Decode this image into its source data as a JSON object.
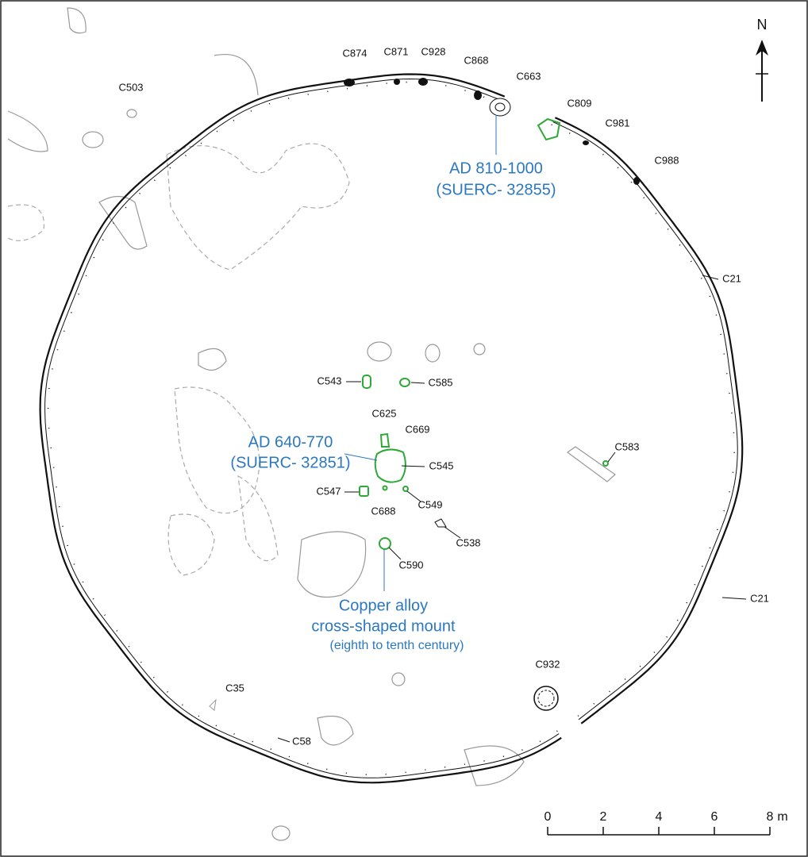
{
  "features": [
    "C874",
    "C871",
    "C928",
    "C868",
    "C663",
    "C503",
    "C809",
    "C981",
    "C988",
    "C21",
    "C21",
    "C543",
    "C585",
    "C625",
    "C669",
    "C545",
    "C547",
    "C688",
    "C549",
    "C538",
    "C590",
    "C583",
    "C932",
    "C35",
    "C58"
  ],
  "annotations": [
    {
      "lines": [
        "AD 810-1000",
        "(SUERC- 32855)"
      ]
    },
    {
      "lines": [
        "AD 640-770",
        "(SUERC- 32851)"
      ]
    },
    {
      "lines": [
        "Copper alloy",
        "cross-shaped mount",
        "(eighth to tenth century)"
      ]
    }
  ],
  "north": "N",
  "scale": {
    "ticks": [
      0,
      2,
      4,
      6,
      8
    ],
    "unit": "m"
  }
}
